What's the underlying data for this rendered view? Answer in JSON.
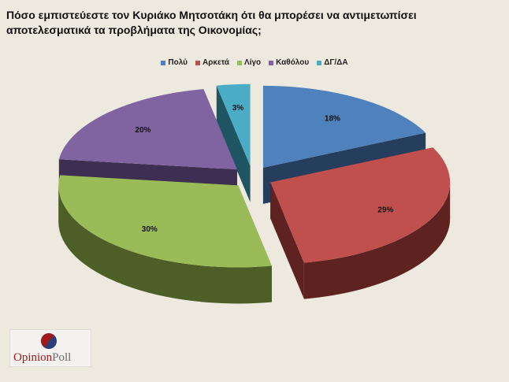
{
  "title": "Πόσο εμπιστεύεστε τον Κυριάκο Μητσοτάκη ότι θα μπορέσει να αντιμετωπίσει αποτελεσματικά τα προβλήματα της Οικονομίας;",
  "logo": {
    "text_a": "Opinion",
    "text_b": "Poll",
    "colors": [
      "#a11a1a",
      "#2c3e7a"
    ]
  },
  "chart_data": {
    "type": "pie",
    "style": "3d-exploded",
    "title": "Πόσο εμπιστεύεστε τον Κυριάκο Μητσοτάκη ότι θα μπορέσει να αντιμετωπίσει αποτελεσματικά τα προβλήματα της Οικονομίας;",
    "legend_position": "top",
    "slices": [
      {
        "label": "Πολύ",
        "value": 18,
        "value_label": "18%",
        "color": "#4f81bd",
        "side_color": "#253e5e"
      },
      {
        "label": "Αρκετά",
        "value": 29,
        "value_label": "29%",
        "color": "#c0504d",
        "side_color": "#5e2221"
      },
      {
        "label": "Λίγο",
        "value": 30,
        "value_label": "30%",
        "color": "#9bbb59",
        "side_color": "#4d5f27"
      },
      {
        "label": "Καθόλου",
        "value": 20,
        "value_label": "20%",
        "color": "#8064a2",
        "side_color": "#3d2e52"
      },
      {
        "label": "ΔΓ/ΔΑ",
        "value": 3,
        "value_label": "3%",
        "color": "#4bacc6",
        "side_color": "#1f5563"
      }
    ]
  }
}
